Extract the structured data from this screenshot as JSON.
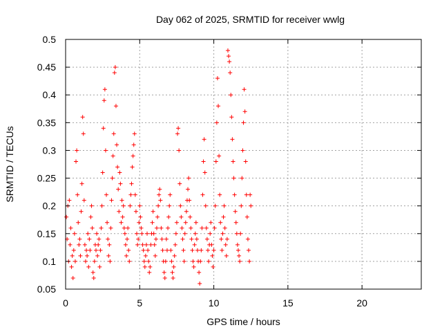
{
  "chart_data": {
    "type": "scatter",
    "title": "Day 062 of 2025, SRMTID for receiver wwlg",
    "xlabel": "GPS time / hours",
    "ylabel": "SRMTID / TECUs",
    "xlim": [
      0,
      24
    ],
    "ylim": [
      0.05,
      0.5
    ],
    "x_ticks": [
      "0",
      "5",
      "10",
      "15",
      "20"
    ],
    "x_tick_values": [
      0,
      5,
      10,
      15,
      20
    ],
    "y_ticks": [
      "0.05",
      "0.1",
      "0.15",
      "0.2",
      "0.25",
      "0.3",
      "0.35",
      "0.4",
      "0.45",
      "0.5"
    ],
    "y_tick_values": [
      0.05,
      0.1,
      0.15,
      0.2,
      0.25,
      0.3,
      0.35,
      0.4,
      0.45,
      0.5
    ],
    "grid": true,
    "marker": "+",
    "colors": {
      "series": "#ff0000",
      "grid": "#a0a0a0",
      "axis": "#000000"
    },
    "series": [
      {
        "x": [
          0.05,
          0.1,
          0.15,
          0.2,
          0.25,
          0.3,
          0.35,
          0.4,
          0.45,
          0.5,
          0.55,
          0.6,
          0.65,
          0.7,
          0.75,
          0.8,
          0.85,
          0.9,
          0.95,
          1.0,
          1.05,
          1.1,
          1.15,
          1.2,
          1.25,
          1.3,
          1.35,
          1.4,
          1.45,
          1.5,
          1.55,
          1.6,
          1.65,
          1.7,
          1.75,
          1.8,
          1.85,
          1.9,
          1.95,
          2.0,
          2.05,
          2.1,
          2.15,
          2.2,
          2.25,
          2.3,
          2.35,
          2.4,
          2.45,
          2.5,
          2.55,
          2.6,
          2.65,
          2.7,
          2.75,
          2.8,
          2.85,
          2.9,
          2.95,
          3.0,
          3.05,
          3.1,
          3.15,
          3.2,
          3.25,
          3.3,
          3.35,
          3.4,
          3.45,
          3.5,
          3.55,
          3.6,
          3.65,
          3.7,
          3.75,
          3.8,
          3.85,
          3.9,
          3.95,
          4.0,
          4.05,
          4.1,
          4.15,
          4.2,
          4.25,
          4.3,
          4.35,
          4.4,
          4.45,
          4.5,
          4.55,
          4.6,
          4.65,
          4.7,
          4.75,
          4.8,
          4.85,
          4.9,
          4.95,
          5.0,
          5.05,
          5.1,
          5.15,
          5.2,
          5.25,
          5.3,
          5.35,
          5.4,
          5.45,
          5.5,
          5.55,
          5.6,
          5.65,
          5.7,
          5.75,
          5.8,
          5.85,
          5.9,
          5.95,
          6.0,
          6.05,
          6.1,
          6.15,
          6.2,
          6.25,
          6.3,
          6.35,
          6.4,
          6.45,
          6.5,
          6.55,
          6.6,
          6.65,
          6.7,
          6.75,
          6.8,
          6.85,
          6.9,
          6.95,
          7.0,
          7.05,
          7.1,
          7.15,
          7.2,
          7.25,
          7.3,
          7.35,
          7.4,
          7.45,
          7.5,
          7.55,
          7.6,
          7.65,
          7.7,
          7.75,
          7.8,
          7.85,
          7.9,
          7.95,
          8.0,
          8.05,
          8.1,
          8.15,
          8.2,
          8.25,
          8.3,
          8.35,
          8.4,
          8.45,
          8.5,
          8.55,
          8.6,
          8.65,
          8.7,
          8.75,
          8.8,
          8.85,
          8.9,
          8.95,
          9.0,
          9.05,
          9.1,
          9.15,
          9.2,
          9.25,
          9.3,
          9.35,
          9.4,
          9.45,
          9.5,
          9.55,
          9.6,
          9.65,
          9.7,
          9.75,
          9.8,
          9.85,
          9.9,
          9.95,
          10.0,
          10.05,
          10.1,
          10.15,
          10.2,
          10.25,
          10.3,
          10.35,
          10.4,
          10.45,
          10.5,
          10.55,
          10.6,
          10.65,
          10.7,
          10.75,
          10.8,
          10.85,
          10.9,
          10.95,
          11.0,
          11.05,
          11.1,
          11.15,
          11.2,
          11.25,
          11.3,
          11.35,
          11.4,
          11.45,
          11.5,
          11.55,
          11.6,
          11.65,
          11.7,
          11.75,
          11.8,
          11.85,
          11.9,
          11.95,
          12.0,
          12.05,
          12.1,
          12.15,
          12.2,
          12.25,
          12.3,
          12.35,
          12.4,
          12.45,
          12.5
        ],
        "y": [
          0.18,
          0.14,
          0.2,
          0.1,
          0.21,
          0.13,
          0.16,
          0.09,
          0.11,
          0.07,
          0.12,
          0.15,
          0.1,
          0.28,
          0.3,
          0.22,
          0.17,
          0.13,
          0.14,
          0.11,
          0.19,
          0.24,
          0.36,
          0.33,
          0.21,
          0.13,
          0.1,
          0.12,
          0.11,
          0.15,
          0.09,
          0.14,
          0.12,
          0.18,
          0.2,
          0.16,
          0.08,
          0.07,
          0.1,
          0.13,
          0.12,
          0.15,
          0.11,
          0.13,
          0.14,
          0.09,
          0.12,
          0.16,
          0.2,
          0.26,
          0.34,
          0.39,
          0.41,
          0.3,
          0.22,
          0.17,
          0.14,
          0.11,
          0.13,
          0.1,
          0.16,
          0.21,
          0.25,
          0.29,
          0.33,
          0.44,
          0.45,
          0.38,
          0.31,
          0.27,
          0.23,
          0.19,
          0.26,
          0.24,
          0.17,
          0.21,
          0.18,
          0.2,
          0.16,
          0.15,
          0.13,
          0.11,
          0.14,
          0.16,
          0.12,
          0.1,
          0.2,
          0.22,
          0.24,
          0.27,
          0.29,
          0.31,
          0.33,
          0.22,
          0.19,
          0.15,
          0.13,
          0.14,
          0.17,
          0.2,
          0.18,
          0.16,
          0.15,
          0.13,
          0.12,
          0.1,
          0.09,
          0.11,
          0.13,
          0.15,
          0.12,
          0.1,
          0.08,
          0.09,
          0.13,
          0.15,
          0.17,
          0.19,
          0.15,
          0.13,
          0.11,
          0.14,
          0.16,
          0.18,
          0.2,
          0.22,
          0.23,
          0.21,
          0.16,
          0.14,
          0.12,
          0.1,
          0.08,
          0.07,
          0.1,
          0.14,
          0.12,
          0.16,
          0.18,
          0.2,
          0.22,
          0.12,
          0.1,
          0.08,
          0.07,
          0.09,
          0.11,
          0.13,
          0.15,
          0.17,
          0.33,
          0.34,
          0.3,
          0.24,
          0.2,
          0.18,
          0.16,
          0.14,
          0.12,
          0.1,
          0.15,
          0.17,
          0.19,
          0.21,
          0.23,
          0.25,
          0.21,
          0.18,
          0.16,
          0.14,
          0.12,
          0.1,
          0.09,
          0.13,
          0.15,
          0.17,
          0.14,
          0.12,
          0.1,
          0.08,
          0.06,
          0.1,
          0.12,
          0.16,
          0.22,
          0.28,
          0.32,
          0.26,
          0.2,
          0.16,
          0.14,
          0.12,
          0.1,
          0.13,
          0.15,
          0.17,
          0.13,
          0.11,
          0.09,
          0.12,
          0.16,
          0.2,
          0.28,
          0.35,
          0.43,
          0.38,
          0.29,
          0.22,
          0.17,
          0.14,
          0.12,
          0.15,
          0.18,
          0.2,
          0.16,
          0.13,
          0.11,
          0.14,
          0.48,
          0.47,
          0.46,
          0.44,
          0.4,
          0.36,
          0.32,
          0.28,
          0.25,
          0.22,
          0.19,
          0.17,
          0.15,
          0.13,
          0.12,
          0.11,
          0.1,
          0.15,
          0.2,
          0.25,
          0.3,
          0.35,
          0.41,
          0.37,
          0.28,
          0.22,
          0.18,
          0.14,
          0.12,
          0.1,
          0.22,
          0.2
        ]
      }
    ]
  }
}
